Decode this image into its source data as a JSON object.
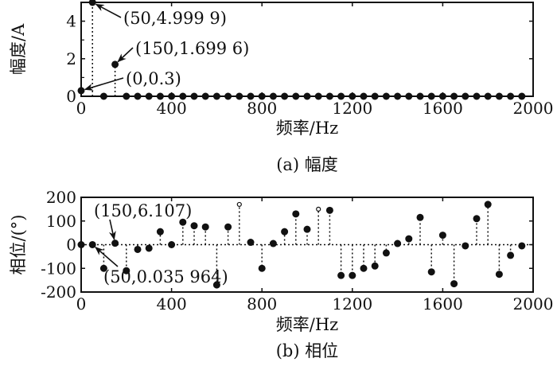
{
  "chart_data": [
    {
      "type": "stem",
      "title": "(a) 幅度",
      "xlabel": "频率/Hz",
      "ylabel": "幅度/A",
      "xlim": [
        0,
        2000
      ],
      "ylim": [
        0,
        5
      ],
      "xticks": [
        0,
        400,
        800,
        1200,
        1600,
        2000
      ],
      "yticks": [
        0,
        2,
        4
      ],
      "x": [
        0,
        50,
        100,
        150,
        200,
        250,
        300,
        350,
        400,
        450,
        500,
        550,
        600,
        650,
        700,
        750,
        800,
        850,
        900,
        950,
        1000,
        1050,
        1100,
        1150,
        1200,
        1250,
        1300,
        1350,
        1400,
        1450,
        1500,
        1550,
        1600,
        1650,
        1700,
        1750,
        1800,
        1850,
        1900,
        1950
      ],
      "values": [
        0.3,
        4.9999,
        0,
        1.6996,
        0,
        0,
        0,
        0,
        0,
        0,
        0,
        0,
        0,
        0,
        0,
        0,
        0,
        0,
        0,
        0,
        0,
        0,
        0,
        0,
        0,
        0,
        0,
        0,
        0,
        0,
        0,
        0,
        0,
        0,
        0,
        0,
        0,
        0,
        0,
        0
      ],
      "annotations": [
        {
          "text": "(50,4.999 9)",
          "x": 50,
          "y": 4.9999
        },
        {
          "text": "(150,1.699 6)",
          "x": 150,
          "y": 1.6996
        },
        {
          "text": "(0,0.3)",
          "x": 0,
          "y": 0.3
        }
      ]
    },
    {
      "type": "stem",
      "title": "(b) 相位",
      "xlabel": "频率/Hz",
      "ylabel": "相位/(°)",
      "xlim": [
        0,
        2000
      ],
      "ylim": [
        -200,
        200
      ],
      "xticks": [
        0,
        400,
        800,
        1200,
        1600,
        2000
      ],
      "yticks": [
        200,
        100,
        0,
        -100,
        -200
      ],
      "x": [
        0,
        50,
        100,
        150,
        200,
        250,
        300,
        350,
        400,
        450,
        500,
        550,
        600,
        650,
        700,
        750,
        800,
        850,
        900,
        950,
        1000,
        1050,
        1100,
        1150,
        1200,
        1250,
        1300,
        1350,
        1400,
        1450,
        1500,
        1550,
        1600,
        1650,
        1700,
        1750,
        1800,
        1850,
        1900,
        1950
      ],
      "values": [
        0,
        0.035964,
        -100,
        6.107,
        -110,
        -20,
        -15,
        55,
        0,
        95,
        80,
        75,
        -170,
        75,
        170,
        10,
        -100,
        5,
        55,
        130,
        65,
        150,
        145,
        -130,
        -130,
        -100,
        -90,
        -35,
        5,
        25,
        115,
        -115,
        40,
        -165,
        -5,
        110,
        170,
        -125,
        -45,
        -5
      ],
      "open_markers": [
        700,
        1050
      ],
      "annotations": [
        {
          "text": "(150,6.107)",
          "x": 150,
          "y": 6.107
        },
        {
          "text": "(50,0.035 964)",
          "x": 50,
          "y": 0.035964
        }
      ]
    }
  ]
}
